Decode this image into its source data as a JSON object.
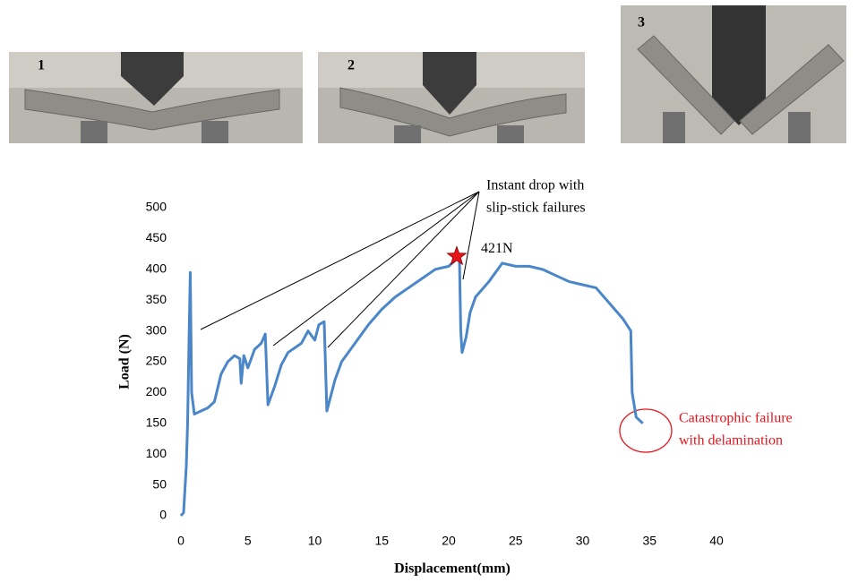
{
  "photos": {
    "labels": [
      "1",
      "2",
      "3"
    ]
  },
  "chart_data": {
    "type": "line",
    "xlabel": "Displacement(mm)",
    "ylabel": "Load (N)",
    "xlim": [
      0,
      40
    ],
    "ylim": [
      0,
      500
    ],
    "xticks": [
      0,
      5,
      10,
      15,
      20,
      25,
      30,
      35,
      40
    ],
    "yticks": [
      0,
      50,
      100,
      150,
      200,
      250,
      300,
      350,
      400,
      450,
      500
    ],
    "x": [
      0,
      0.2,
      0.4,
      0.5,
      0.6,
      0.7,
      0.8,
      1.0,
      1.5,
      2,
      2.5,
      3,
      3.5,
      4,
      4.4,
      4.5,
      4.7,
      5,
      5.5,
      6,
      6.3,
      6.5,
      7,
      7.5,
      8,
      9,
      9.5,
      10,
      10.3,
      10.7,
      10.9,
      11.5,
      12,
      13,
      14,
      15,
      16,
      17,
      18,
      19,
      20,
      20.5,
      20.8,
      20.9,
      21.0,
      21.3,
      21.6,
      22,
      23,
      24,
      25,
      26,
      27,
      28,
      29,
      30,
      31,
      32,
      33,
      33.6,
      33.7,
      34,
      34.5
    ],
    "series": [
      {
        "name": "Load",
        "color": "#4a86c8",
        "values": [
          0,
          5,
          80,
          150,
          280,
          395,
          200,
          165,
          170,
          175,
          185,
          230,
          250,
          260,
          255,
          215,
          260,
          240,
          270,
          280,
          295,
          180,
          210,
          245,
          265,
          280,
          300,
          285,
          310,
          315,
          170,
          220,
          250,
          280,
          310,
          335,
          355,
          370,
          385,
          400,
          405,
          415,
          419,
          300,
          265,
          290,
          330,
          355,
          380,
          410,
          405,
          405,
          400,
          390,
          380,
          375,
          370,
          345,
          320,
          300,
          200,
          160,
          150
        ]
      }
    ],
    "peak": {
      "x": 20.6,
      "y": 421,
      "label": "421N",
      "color": "#e8141c"
    },
    "annotations": [
      {
        "lines": [
          "Instant drop with",
          "slip-stick failures"
        ],
        "color": "#000000"
      },
      {
        "lines": [
          "Catastrophic failure",
          "with delamination"
        ],
        "color": "#e8141c"
      }
    ]
  }
}
